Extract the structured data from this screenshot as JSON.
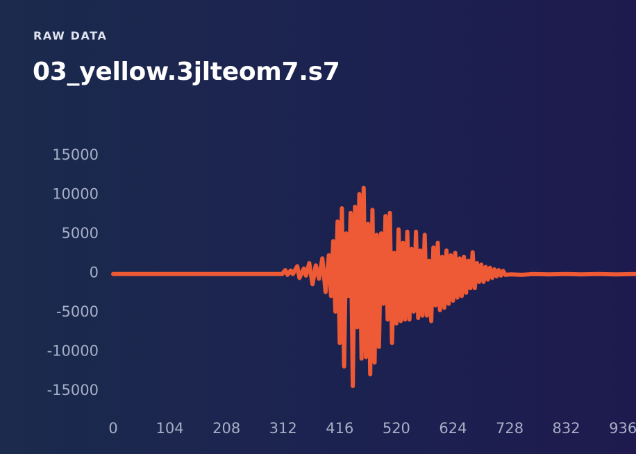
{
  "header": {
    "eyebrow": "RAW DATA",
    "title": "03_yellow.3jlteom7.s7"
  },
  "colors": {
    "background_start": "#1b2a4d",
    "background_end": "#1e1a4f",
    "series": "#ed5a35",
    "tick_labels": "#a7b0c6"
  },
  "chart_data": {
    "type": "line",
    "title": "",
    "xlabel": "",
    "ylabel": "",
    "grid": false,
    "legend": "none",
    "xlim": [
      0,
      960
    ],
    "ylim": [
      -17500,
      17500
    ],
    "x_ticks": [
      0,
      104,
      208,
      312,
      416,
      520,
      624,
      728,
      832,
      936
    ],
    "y_ticks": [
      15000,
      10000,
      5000,
      0,
      -5000,
      -10000,
      -15000
    ],
    "series": [
      {
        "name": "",
        "x": [
          0,
          310,
          316,
          320,
          326,
          330,
          338,
          342,
          350,
          354,
          360,
          366,
          372,
          378,
          384,
          390,
          396,
          400,
          404,
          408,
          412,
          416,
          420,
          424,
          428,
          432,
          436,
          440,
          444,
          448,
          452,
          456,
          460,
          464,
          468,
          472,
          476,
          480,
          484,
          488,
          492,
          496,
          500,
          504,
          508,
          512,
          516,
          520,
          524,
          528,
          532,
          536,
          540,
          544,
          548,
          552,
          556,
          560,
          564,
          568,
          572,
          576,
          580,
          584,
          588,
          592,
          596,
          600,
          604,
          608,
          612,
          616,
          620,
          624,
          628,
          632,
          636,
          640,
          644,
          648,
          652,
          656,
          660,
          664,
          668,
          672,
          676,
          680,
          684,
          688,
          692,
          696,
          700,
          704,
          708,
          712,
          716,
          720,
          730,
          750,
          770,
          800,
          830,
          860,
          890,
          920,
          960
        ],
        "y": [
          -200,
          -200,
          300,
          -300,
          250,
          -200,
          800,
          -700,
          500,
          -400,
          1200,
          -1500,
          900,
          -800,
          1800,
          -2500,
          2200,
          -3000,
          4000,
          -5000,
          6500,
          -9000,
          8200,
          -12000,
          5000,
          -3000,
          7600,
          -14500,
          8400,
          -7000,
          10000,
          -11000,
          10800,
          -10800,
          6200,
          -13000,
          8000,
          -11500,
          4800,
          -9500,
          5000,
          -4000,
          7200,
          -6000,
          7600,
          -9000,
          2500,
          -6500,
          5500,
          -6200,
          3800,
          -6000,
          5200,
          -6000,
          3000,
          -5000,
          5200,
          -5800,
          2800,
          -5500,
          4800,
          -5500,
          1500,
          -6200,
          3200,
          -4200,
          3800,
          -4800,
          2000,
          -4500,
          2800,
          -4000,
          2200,
          -3600,
          2500,
          -3200,
          1800,
          -3000,
          2000,
          -2600,
          1500,
          -2000,
          2600,
          -2000,
          1200,
          -1200,
          1000,
          -1200,
          700,
          -900,
          600,
          -700,
          400,
          -500,
          300,
          -400,
          200,
          -300,
          -250,
          -300,
          -200,
          -250,
          -200,
          -250,
          -200,
          -250,
          -200
        ]
      }
    ]
  }
}
